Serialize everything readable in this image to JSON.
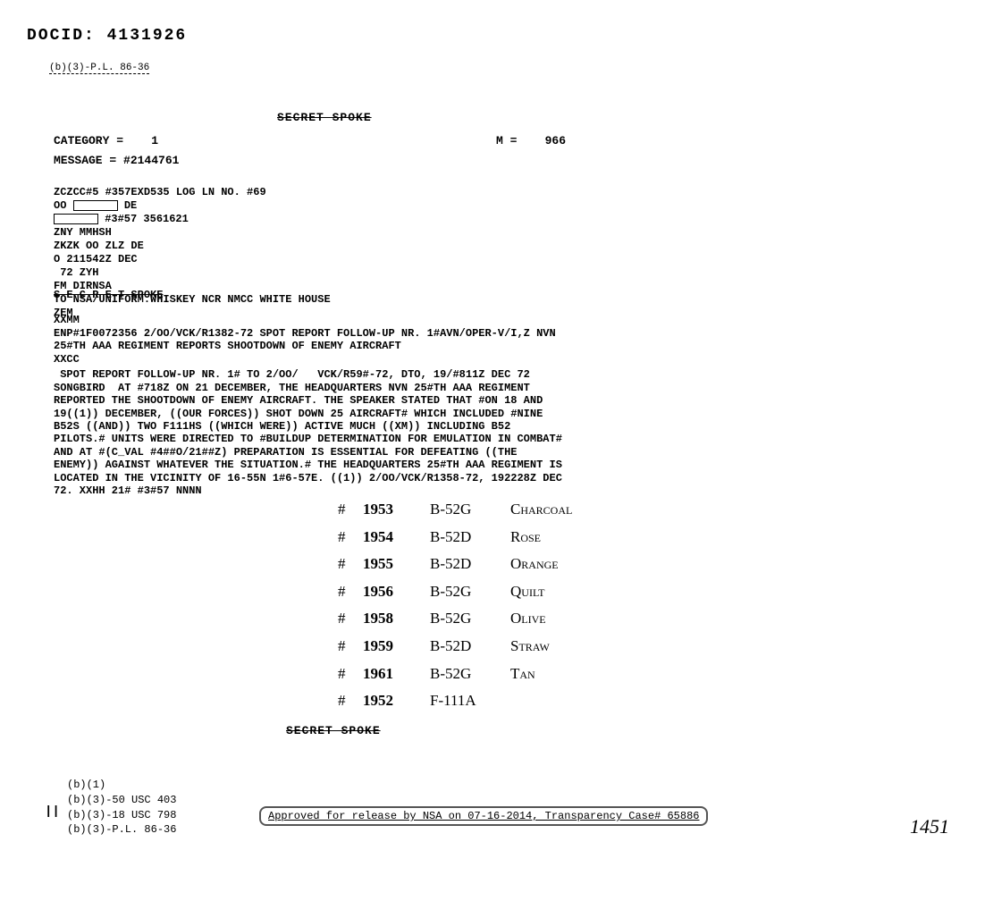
{
  "docid": "DOCID: 4131926",
  "top_redaction": "(b)(3)-P.L. 86-36",
  "secret_spoke": "SECRET SPOKE",
  "category": {
    "label": "CATEGORY =",
    "value": "1"
  },
  "m": {
    "label": "M =",
    "value": "966"
  },
  "message": {
    "label": "MESSAGE =",
    "value": "#2144761"
  },
  "routing": {
    "line1": "ZCZCC#5 #357EXD535 LOG LN NO. #69",
    "line2a": "OO",
    "line2b": "DE",
    "line3a": "#3#57 3561621",
    "line4": "ZNY MMHSH",
    "line5": "ZKZK OO ZLZ DE",
    "line6": "O 211542Z DEC",
    "line7": " 72 ZYH",
    "line8": "FM DIRNSA",
    "line9": "TO NSA/UNIFORM.WHISKEY NCR NMCC WHITE HOUSE",
    "line10": "ZEM"
  },
  "secret_strike_2": "S E C R E T SPOKE",
  "xxmm_block": {
    "line1": "XXMM",
    "line2": "ENP#1F0072356 2/OO/VCK/R1382-72 SPOT REPORT FOLLOW-UP NR. 1#AVN/OPER-V/I,Z NVN",
    "line3": "25#TH AAA REGIMENT REPORTS SHOOTDOWN OF ENEMY AIRCRAFT",
    "line4": "XXCC"
  },
  "report": {
    "line1": " SPOT REPORT FOLLOW-UP NR. 1# TO 2/OO/   VCK/R59#-72, DTO, 19/#811Z DEC 72",
    "line2": "SONGBIRD  AT #718Z ON 21 DECEMBER, THE HEADQUARTERS NVN 25#TH AAA REGIMENT",
    "line3": "REPORTED THE SHOOTDOWN OF ENEMY AIRCRAFT. THE SPEAKER STATED THAT #ON 18 AND",
    "line4": "19((1)) DECEMBER, ((OUR FORCES)) SHOT DOWN 25 AIRCRAFT# WHICH INCLUDED #NINE",
    "line5": "B52S ((AND)) TWO F111HS ((WHICH WERE)) ACTIVE MUCH ((XM)) INCLUDING B52",
    "line6": "PILOTS.# UNITS WERE DIRECTED TO #BUILDUP DETERMINATION FOR EMULATION IN COMBAT#",
    "line7": "AND AT #(C_VAL #4##O/21##Z) PREPARATION IS ESSENTIAL FOR DEFEATING ((THE",
    "line8": "ENEMY)) AGAINST WHATEVER THE SITUATION.# THE HEADQUARTERS 25#TH AAA REGIMENT IS",
    "line9": "LOCATED IN THE VICINITY OF 16-55N 1#6-57E. ((1)) 2/OO/VCK/R1358-72, 192228Z DEC",
    "line10": "72. XXHH 21# #3#57 NNNN"
  },
  "handwritten": [
    {
      "hash": "#",
      "num": "1953",
      "model": "B-52G",
      "name": "Charcoal"
    },
    {
      "hash": "#",
      "num": "1954",
      "model": "B-52D",
      "name": "Rose"
    },
    {
      "hash": "#",
      "num": "1955",
      "model": "B-52D",
      "name": "Orange"
    },
    {
      "hash": "#",
      "num": "1956",
      "model": "B-52G",
      "name": "Quilt"
    },
    {
      "hash": "#",
      "num": "1958",
      "model": "B-52G",
      "name": "Olive"
    },
    {
      "hash": "#",
      "num": "1959",
      "model": "B-52D",
      "name": "Straw"
    },
    {
      "hash": "#",
      "num": "1961",
      "model": "B-52G",
      "name": "Tan"
    },
    {
      "hash": "#",
      "num": "1952",
      "model": "F-111A",
      "name": ""
    }
  ],
  "exemptions": {
    "line1": "(b)(1)",
    "line2": "(b)(3)-50 USC 403",
    "line3": "(b)(3)-18 USC 798",
    "line4": "(b)(3)-P.L. 86-36"
  },
  "approval": "Approved for release by NSA on 07-16-2014, Transparency Case# 65886",
  "page_num": "1451",
  "tick": "||"
}
